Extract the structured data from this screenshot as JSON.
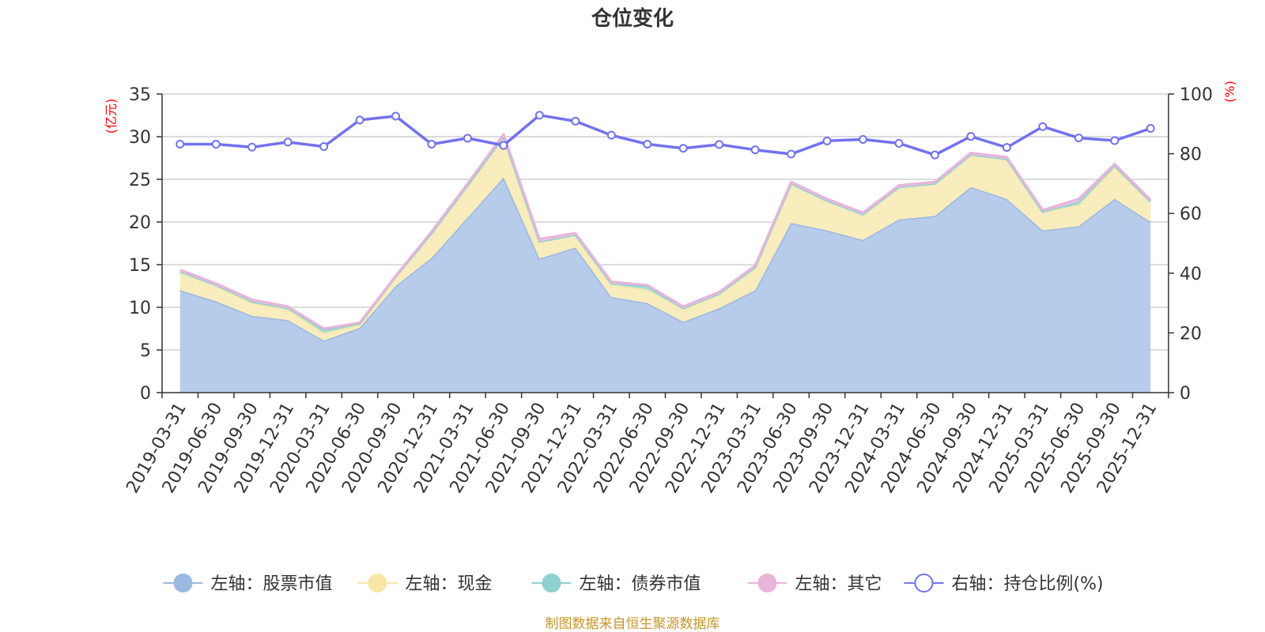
{
  "chart_data": {
    "type": "area",
    "title": "仓位变化",
    "left_axis_unit": "(亿元)",
    "right_axis_unit": "(%)",
    "left_ylim": [
      0,
      35
    ],
    "left_yticks": [
      0,
      5,
      10,
      15,
      20,
      25,
      30,
      35
    ],
    "right_ylim": [
      0,
      100
    ],
    "right_yticks": [
      0,
      20,
      40,
      60,
      80,
      100
    ],
    "grid": true,
    "legend_position": "bottom",
    "categories": [
      "2019-03-31",
      "2019-06-30",
      "2019-09-30",
      "2019-12-31",
      "2020-03-31",
      "2020-06-30",
      "2020-09-30",
      "2020-12-31",
      "2021-03-31",
      "2021-06-30",
      "2021-09-30",
      "2021-12-31",
      "2022-03-31",
      "2022-06-30",
      "2022-09-30",
      "2022-12-31",
      "2023-03-31",
      "2023-06-30",
      "2023-09-30",
      "2023-12-31",
      "2024-03-31",
      "2024-06-30",
      "2024-09-30",
      "2024-12-31",
      "2025-03-31",
      "2025-06-30",
      "2025-09-30",
      "2025-12-31"
    ],
    "stacked_series": [
      {
        "name": "左轴：股票市值",
        "axis": "left",
        "color": "#9bb8e0",
        "fill": "#b7cceb",
        "values": [
          12.0,
          10.7,
          9.0,
          8.5,
          6.1,
          7.6,
          12.5,
          15.8,
          20.5,
          25.2,
          15.7,
          17.0,
          11.2,
          10.5,
          8.3,
          9.9,
          12.0,
          19.9,
          19.0,
          17.9,
          20.3,
          20.7,
          24.1,
          22.7,
          19.0,
          19.5,
          22.7,
          20.0
        ]
      },
      {
        "name": "左轴：现金",
        "axis": "left",
        "color": "#f7e6a6",
        "fill": "#f9ecbd",
        "values": [
          2.2,
          1.9,
          1.5,
          1.3,
          0.9,
          0.4,
          1.1,
          2.9,
          3.8,
          4.8,
          2.0,
          1.5,
          1.5,
          1.6,
          1.5,
          1.6,
          2.7,
          4.6,
          3.5,
          3.0,
          3.8,
          3.8,
          3.8,
          4.7,
          2.2,
          2.5,
          3.8,
          2.4
        ]
      },
      {
        "name": "左轴：债券市值",
        "axis": "left",
        "color": "#8fd0d0",
        "fill": "#a6dcd8",
        "values": [
          0.0,
          0.0,
          0.2,
          0.1,
          0.4,
          0.1,
          0.0,
          0.0,
          0.0,
          0.0,
          0.0,
          0.0,
          0.1,
          0.4,
          0.1,
          0.1,
          0.0,
          0.0,
          0.0,
          0.0,
          0.0,
          0.0,
          0.0,
          0.0,
          0.0,
          0.4,
          0.1,
          0.0
        ]
      },
      {
        "name": "左轴：其它",
        "axis": "left",
        "color": "#e8b4da",
        "fill": "#eec6e4",
        "values": [
          0.2,
          0.2,
          0.2,
          0.2,
          0.1,
          0.1,
          0.1,
          0.2,
          0.2,
          0.3,
          0.3,
          0.2,
          0.2,
          0.1,
          0.2,
          0.2,
          0.2,
          0.2,
          0.2,
          0.2,
          0.2,
          0.2,
          0.2,
          0.2,
          0.2,
          0.3,
          0.2,
          0.2
        ]
      }
    ],
    "line_series": [
      {
        "name": "右轴：持仓比例(%)",
        "axis": "right",
        "color": "#7272ee",
        "values": [
          83.2,
          83.2,
          82.2,
          83.9,
          82.4,
          91.3,
          92.6,
          83.2,
          85.2,
          82.8,
          92.9,
          90.9,
          86.2,
          83.2,
          81.8,
          83.1,
          81.3,
          79.9,
          84.3,
          84.8,
          83.5,
          79.6,
          85.8,
          82.1,
          89.1,
          85.3,
          84.4,
          88.5
        ]
      }
    ]
  },
  "footer": "制图数据来自恒生聚源数据库"
}
